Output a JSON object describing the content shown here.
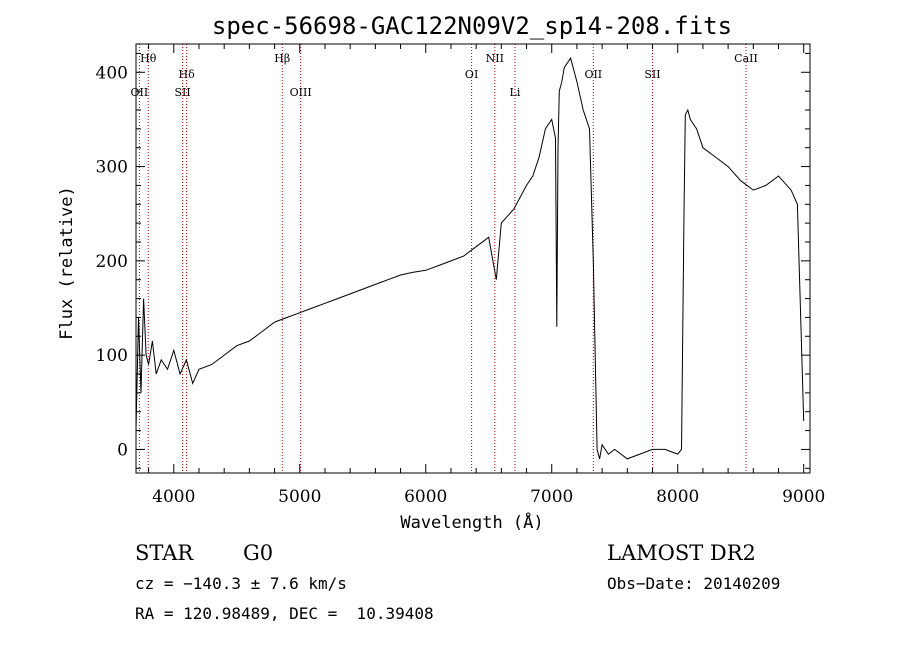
{
  "chart_data": {
    "type": "line",
    "title": "spec-56698-GAC122N09V2_sp14-208.fits",
    "xlabel": "Wavelength (Å)",
    "ylabel": "Flux (relative)",
    "xlim": [
      3700,
      9050
    ],
    "ylim": [
      -25,
      430
    ],
    "x_ticks": [
      4000,
      5000,
      6000,
      7000,
      8000,
      9000
    ],
    "y_ticks": [
      0,
      100,
      200,
      300,
      400
    ],
    "grid": false,
    "series": [
      {
        "x": [
          3700,
          3720,
          3740,
          3760,
          3780,
          3800,
          3830,
          3860,
          3900,
          3950,
          4000,
          4050,
          4100,
          4150,
          4200,
          4300,
          4400,
          4500,
          4600,
          4700,
          4800,
          4900,
          5000,
          5100,
          5200,
          5300,
          5400,
          5500,
          5600,
          5700,
          5800,
          5900,
          6000,
          6100,
          6200,
          6300,
          6400,
          6500,
          6560,
          6600,
          6700,
          6800,
          6850,
          6900,
          6950,
          7000,
          7030,
          7040,
          7050,
          7060,
          7080,
          7100,
          7150,
          7200,
          7250,
          7300,
          7330,
          7360,
          7380,
          7400,
          7450,
          7500,
          7600,
          7700,
          7800,
          7900,
          8000,
          8030,
          8050,
          8060,
          8080,
          8100,
          8150,
          8200,
          8300,
          8400,
          8500,
          8600,
          8700,
          8800,
          8900,
          8950,
          9000
        ],
        "y": [
          20,
          140,
          60,
          160,
          100,
          90,
          115,
          80,
          95,
          85,
          105,
          80,
          95,
          70,
          85,
          90,
          100,
          110,
          115,
          125,
          135,
          140,
          145,
          150,
          155,
          160,
          165,
          170,
          175,
          180,
          185,
          188,
          190,
          195,
          200,
          205,
          215,
          225,
          180,
          240,
          255,
          280,
          290,
          310,
          340,
          350,
          330,
          130,
          320,
          380,
          390,
          405,
          415,
          390,
          360,
          340,
          200,
          0,
          -10,
          5,
          -5,
          0,
          -10,
          -5,
          0,
          0,
          -5,
          0,
          250,
          355,
          360,
          350,
          340,
          320,
          310,
          300,
          285,
          275,
          280,
          290,
          275,
          260,
          30
        ]
      }
    ],
    "line_markers": [
      {
        "label": "Hθ",
        "x": 3797,
        "row": "top"
      },
      {
        "label": "OII",
        "x": 3727,
        "row": "mid"
      },
      {
        "label": "Hδ",
        "x": 4102,
        "row": "upper"
      },
      {
        "label": "SII",
        "x": 4070,
        "row": "mid"
      },
      {
        "label": "Hβ",
        "x": 4861,
        "row": "top"
      },
      {
        "label": "OIII",
        "x": 5007,
        "row": "mid"
      },
      {
        "label": "OI",
        "x": 6364,
        "row": "upper"
      },
      {
        "label": "NII",
        "x": 6548,
        "row": "top"
      },
      {
        "label": "Li",
        "x": 6708,
        "row": "mid"
      },
      {
        "label": "OII",
        "x": 7330,
        "row": "upper"
      },
      {
        "label": "SII",
        "x": 7800,
        "row": "upper"
      },
      {
        "label": "CaII",
        "x": 8542,
        "row": "top"
      }
    ]
  },
  "info": {
    "class_label": "STAR",
    "subclass": "G0",
    "survey": "LAMOST DR2",
    "redshift": "cz = −140.3 ± 7.6 km/s",
    "obs_date": "Obs−Date: 20140209",
    "coords": "RA = 120.98489, DEC =  10.39408"
  }
}
